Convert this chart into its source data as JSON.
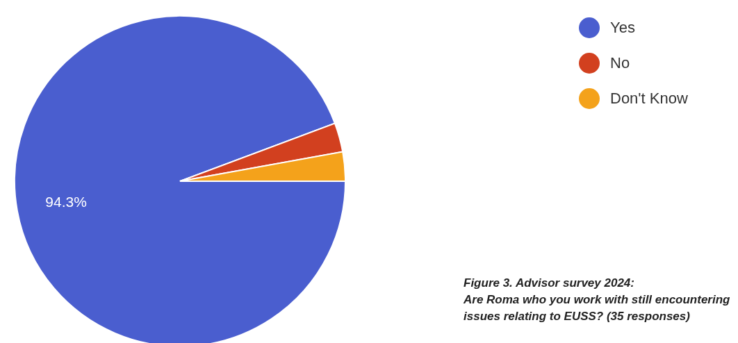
{
  "chart_data": {
    "type": "pie",
    "categories": [
      "Yes",
      "No",
      "Don't Know"
    ],
    "values": [
      94.3,
      2.85,
      2.85
    ],
    "colors": [
      "#4a5ecf",
      "#d2401f",
      "#f4a21b"
    ],
    "value_labels": [
      "94.3%",
      null,
      null
    ],
    "legend": "top right",
    "annotations": [
      "Figure 3. Advisor survey 2024:\nAre Roma who you work with still encountering\nissues relating to EUSS? (35 responses)"
    ]
  }
}
